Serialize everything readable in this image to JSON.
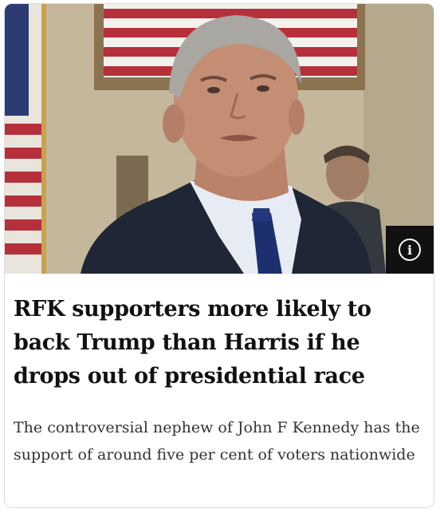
{
  "article": {
    "headline": "RFK supporters more likely to back Trump than Harris if he drops out of presidential race",
    "summary": "The controversial nephew of John F Kennedy has the support of around five per cent of voters nationwide",
    "info_icon": "info-icon"
  },
  "colors": {
    "info_button_bg": "#111111",
    "headline_text": "#111111",
    "summary_text": "#333333"
  }
}
